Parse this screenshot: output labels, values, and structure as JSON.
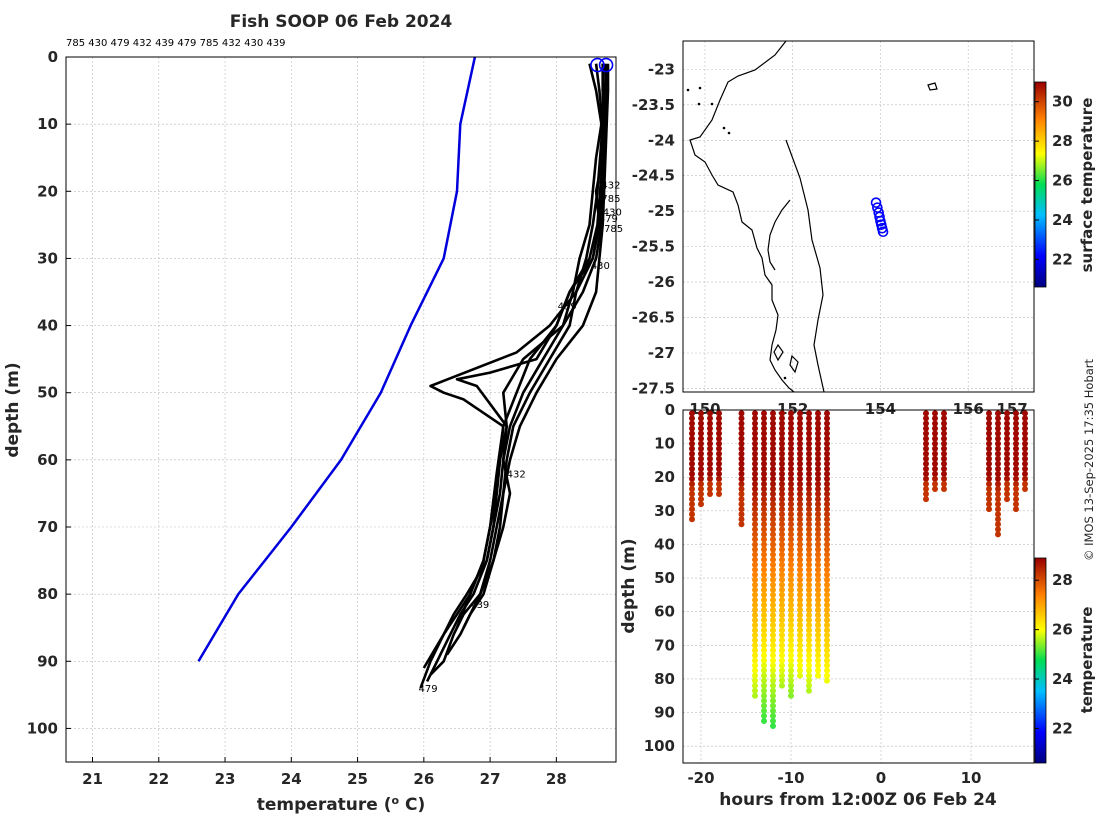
{
  "title": "Fish SOOP 06 Feb 2024",
  "profile_ids_header": "785 430 479 432 439 479 785 432 430 439",
  "credit": "© IMOS 13-Sep-2025 17:35 Hobart",
  "colors": {
    "climatology": "#0000dd",
    "profiles": "#000000",
    "map_points": "#0000ff"
  },
  "chart_data": [
    {
      "name": "profiles",
      "type": "line",
      "title": "Fish SOOP 06 Feb 2024",
      "xlabel": "temperature (o C)",
      "xlabel_main": "temperature (",
      "xlabel_sup": "o",
      "xlabel_end": " C)",
      "ylabel": "depth (m)",
      "xlim": [
        20.6,
        28.9
      ],
      "ylim": [
        105,
        0
      ],
      "xticks": [
        21,
        22,
        23,
        24,
        25,
        26,
        27,
        28
      ],
      "yticks": [
        0,
        10,
        20,
        30,
        40,
        50,
        60,
        70,
        80,
        90,
        100
      ],
      "series": [
        {
          "name": "climatology",
          "color": "#0000dd",
          "temperature": [
            26.77,
            26.55,
            26.5,
            26.3,
            25.8,
            25.35,
            24.75,
            24.0,
            23.6,
            23.2,
            22.6
          ],
          "depth": [
            0,
            10,
            20,
            30,
            40,
            50,
            60,
            70,
            75,
            80,
            90
          ]
        },
        {
          "name": "profile-a",
          "color": "#000000",
          "temperature": [
            28.7,
            28.72,
            28.73,
            28.7,
            28.6,
            28.65,
            28.55,
            28.2,
            28.0,
            27.6,
            27.4,
            27.2,
            27.15,
            27.1,
            27.0,
            26.9,
            26.7,
            26.5,
            26.3,
            26.1,
            25.95
          ],
          "depth": [
            1,
            5,
            10,
            15,
            20,
            25,
            30,
            35,
            40,
            45,
            50,
            55,
            60,
            65,
            70,
            75,
            80,
            83,
            86,
            90,
            94
          ]
        },
        {
          "name": "profile-b",
          "color": "#000000",
          "temperature": [
            28.75,
            28.75,
            28.74,
            28.72,
            28.7,
            28.68,
            28.6,
            28.4,
            28.1,
            27.8,
            27.5,
            27.3,
            27.2,
            27.15,
            27.05,
            26.95,
            26.75,
            26.55,
            26.4,
            26.2,
            26.05
          ],
          "depth": [
            1,
            5,
            10,
            15,
            20,
            25,
            30,
            35,
            40,
            45,
            50,
            55,
            60,
            65,
            70,
            75,
            80,
            83,
            86,
            90,
            93
          ]
        },
        {
          "name": "profile-c",
          "color": "#000000",
          "temperature": [
            28.6,
            28.65,
            28.7,
            28.66,
            28.62,
            28.55,
            28.45,
            28.3,
            28.2,
            27.9,
            27.6,
            27.35,
            27.25,
            27.2,
            27.1,
            27.0,
            26.85,
            26.6,
            26.45,
            26.3,
            26.1
          ],
          "depth": [
            1,
            5,
            10,
            15,
            20,
            25,
            30,
            35,
            40,
            45,
            50,
            55,
            60,
            65,
            70,
            75,
            80,
            83,
            86,
            90,
            92
          ]
        },
        {
          "name": "profile-d",
          "color": "#000000",
          "temperature": [
            28.78,
            28.78,
            28.76,
            28.74,
            28.72,
            28.7,
            28.65,
            28.6,
            28.4,
            28.0,
            27.7,
            27.45,
            27.3,
            27.2,
            27.15,
            27.05,
            26.9,
            26.7,
            26.55,
            26.35
          ],
          "depth": [
            1,
            5,
            10,
            15,
            20,
            25,
            30,
            35,
            40,
            45,
            50,
            55,
            60,
            65,
            70,
            75,
            80,
            83,
            86,
            89
          ]
        },
        {
          "name": "profile-e",
          "color": "#000000",
          "temperature": [
            28.5,
            28.6,
            28.68,
            28.6,
            28.55,
            28.5,
            28.35,
            28.25,
            28.1,
            27.5,
            27.2,
            27.25,
            27.15,
            27.1,
            27.05,
            26.95,
            26.65,
            26.45,
            26.3,
            26.0
          ],
          "depth": [
            1,
            5,
            10,
            15,
            20,
            25,
            30,
            35,
            40,
            45,
            50,
            55,
            60,
            65,
            70,
            75,
            80,
            83,
            86,
            91
          ]
        },
        {
          "name": "profile-f",
          "color": "#000000",
          "temperature": [
            28.7,
            28.7,
            28.72,
            28.7,
            28.68,
            28.64,
            28.55,
            28.3,
            27.9,
            27.4,
            26.1,
            26.3,
            26.6,
            27.2,
            27.1,
            27.0,
            26.9,
            26.7,
            26.5
          ],
          "depth": [
            1,
            5,
            10,
            15,
            20,
            25,
            30,
            35,
            40,
            44,
            49,
            50,
            51,
            55,
            62,
            70,
            75,
            80,
            85
          ]
        },
        {
          "name": "profile-g",
          "color": "#000000",
          "temperature": [
            28.72,
            28.7,
            28.74,
            28.7,
            28.66,
            28.62,
            28.5,
            28.2,
            28.0,
            27.7,
            27.0,
            26.5,
            26.8,
            27.25,
            27.2,
            27.3,
            27.2,
            27.05,
            26.85,
            26.6
          ],
          "depth": [
            1,
            5,
            10,
            15,
            20,
            25,
            30,
            35,
            40,
            45,
            47,
            48,
            49,
            55,
            60,
            65,
            70,
            75,
            80,
            85
          ]
        }
      ],
      "annotations": [
        {
          "text": "432",
          "temperature": 28.68,
          "depth": 19
        },
        {
          "text": "785",
          "temperature": 28.68,
          "depth": 21
        },
        {
          "text": "430",
          "temperature": 28.7,
          "depth": 23
        },
        {
          "text": "479",
          "temperature": 28.64,
          "depth": 24
        },
        {
          "text": "785",
          "temperature": 28.72,
          "depth": 25.5
        },
        {
          "text": "430",
          "temperature": 28.52,
          "depth": 31
        },
        {
          "text": "439",
          "temperature": 28.02,
          "depth": 37
        },
        {
          "text": "432",
          "temperature": 27.25,
          "depth": 62
        },
        {
          "text": "439",
          "temperature": 26.7,
          "depth": 81.5
        },
        {
          "text": "479",
          "temperature": 25.92,
          "depth": 94
        }
      ]
    },
    {
      "name": "map",
      "type": "scatter",
      "xlabel": "",
      "ylabel": "",
      "xlim": [
        149.3,
        157.3
      ],
      "ylim": [
        -27.55,
        -22.6
      ],
      "xtick_labels": [
        "150",
        "152",
        "154",
        "156",
        "157"
      ],
      "xticks": [
        149.8,
        151.8,
        153.8,
        155.8,
        156.8
      ],
      "yticks": [
        -23,
        -23.5,
        -24,
        -24.5,
        -25,
        -25.5,
        -26,
        -26.5,
        -27,
        -27.5
      ],
      "points": {
        "lon": [
          153.7,
          153.73,
          153.76,
          153.78,
          153.8,
          153.82,
          153.84,
          153.86
        ],
        "lat": [
          -24.88,
          -24.95,
          -25.02,
          -25.08,
          -25.14,
          -25.19,
          -25.24,
          -25.29
        ]
      },
      "colorbar": {
        "label": "surface temperature",
        "ticks": [
          22,
          24,
          26,
          28,
          30
        ],
        "range": [
          20.6,
          31.0
        ]
      }
    },
    {
      "name": "section",
      "type": "scatter",
      "xlabel": "hours from 12:00Z 06 Feb 24",
      "ylabel": "depth (m)",
      "xlim": [
        -22,
        17
      ],
      "ylim": [
        105,
        0
      ],
      "xticks": [
        -20,
        -10,
        0,
        10
      ],
      "yticks": [
        0,
        10,
        20,
        30,
        40,
        50,
        60,
        70,
        80,
        90,
        100
      ],
      "casts": [
        {
          "hours": -21,
          "max_depth": 33,
          "mid_temp": 28.5
        },
        {
          "hours": -20,
          "max_depth": 28,
          "mid_temp": 28.6
        },
        {
          "hours": -19,
          "max_depth": 25,
          "mid_temp": 28.6
        },
        {
          "hours": -18,
          "max_depth": 26,
          "mid_temp": 28.6
        },
        {
          "hours": -15.5,
          "max_depth": 35,
          "mid_temp": 28.5
        },
        {
          "hours": -14,
          "max_depth": 85,
          "mid_temp": 27.0
        },
        {
          "hours": -13,
          "max_depth": 93,
          "mid_temp": 26.4
        },
        {
          "hours": -12,
          "max_depth": 94,
          "mid_temp": 26.4
        },
        {
          "hours": -11,
          "max_depth": 82,
          "mid_temp": 27.0
        },
        {
          "hours": -10,
          "max_depth": 85,
          "mid_temp": 26.8
        },
        {
          "hours": -9,
          "max_depth": 80,
          "mid_temp": 27.2
        },
        {
          "hours": -8,
          "max_depth": 84,
          "mid_temp": 27.0
        },
        {
          "hours": -7,
          "max_depth": 80,
          "mid_temp": 27.3
        },
        {
          "hours": -6,
          "max_depth": 81,
          "mid_temp": 27.3
        },
        {
          "hours": 5,
          "max_depth": 27,
          "mid_temp": 28.7
        },
        {
          "hours": 6,
          "max_depth": 24,
          "mid_temp": 28.7
        },
        {
          "hours": 7,
          "max_depth": 24,
          "mid_temp": 28.7
        },
        {
          "hours": 12,
          "max_depth": 30,
          "mid_temp": 28.6
        },
        {
          "hours": 13,
          "max_depth": 37,
          "mid_temp": 28.5
        },
        {
          "hours": 14,
          "max_depth": 27,
          "mid_temp": 28.6
        },
        {
          "hours": 15,
          "max_depth": 30,
          "mid_temp": 28.6
        },
        {
          "hours": 16,
          "max_depth": 24,
          "mid_temp": 28.7
        }
      ],
      "colorbar": {
        "label": "temperature",
        "ticks": [
          22,
          24,
          26,
          28
        ],
        "range": [
          20.6,
          28.9
        ]
      }
    }
  ]
}
